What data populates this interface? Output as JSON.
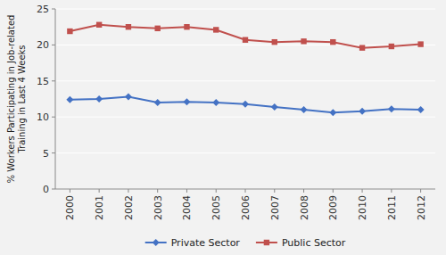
{
  "chart_data": {
    "type": "line",
    "categories": [
      "2000",
      "2001",
      "2002",
      "2003",
      "2004",
      "2005",
      "2006",
      "2007",
      "2008",
      "2009",
      "2010",
      "2011",
      "2012"
    ],
    "series": [
      {
        "name": "Private Sector",
        "color": "#4472c4",
        "marker": "diamond",
        "values": [
          12.4,
          12.5,
          12.8,
          12.0,
          12.1,
          12.0,
          11.8,
          11.4,
          11.0,
          10.6,
          10.8,
          11.1,
          11.0
        ]
      },
      {
        "name": "Public Sector",
        "color": "#c0504d",
        "marker": "square",
        "values": [
          21.9,
          22.8,
          22.5,
          22.3,
          22.5,
          22.1,
          20.7,
          20.4,
          20.5,
          20.4,
          19.6,
          19.8,
          20.1
        ]
      }
    ],
    "y_label": "% Workers Participating in Job-related\nTraining in Last 4 Weeks",
    "ylim": [
      0,
      25
    ],
    "yticks": [
      0,
      5,
      10,
      15,
      20,
      25
    ],
    "grid": true,
    "legend": "bottom"
  }
}
